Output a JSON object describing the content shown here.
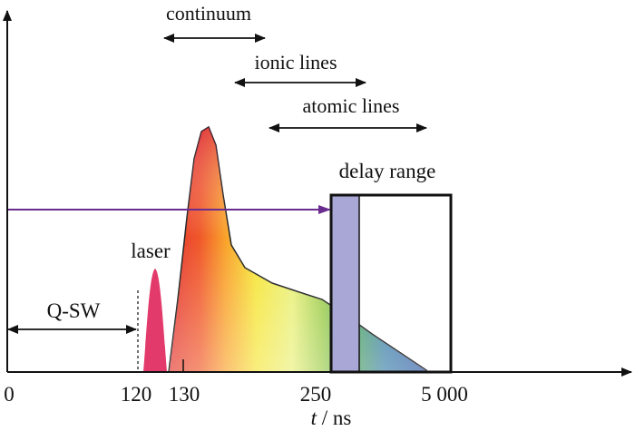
{
  "labels": {
    "continuum": "continuum",
    "ionic_lines": "ionic lines",
    "atomic_lines": "atomic lines",
    "delay_range": "delay range",
    "laser": "laser",
    "q_sw": "Q-SW"
  },
  "axis": {
    "x_title_var": "t",
    "x_title_unit": " / ns",
    "ticks": [
      "0",
      "120",
      "130",
      "250",
      "5 000"
    ]
  },
  "colors": {
    "arrow_line": "#6a2c8f",
    "delay_fill": "#a9a7d6",
    "laser_pulse": "#e23a6a",
    "frame": "#111111"
  }
}
